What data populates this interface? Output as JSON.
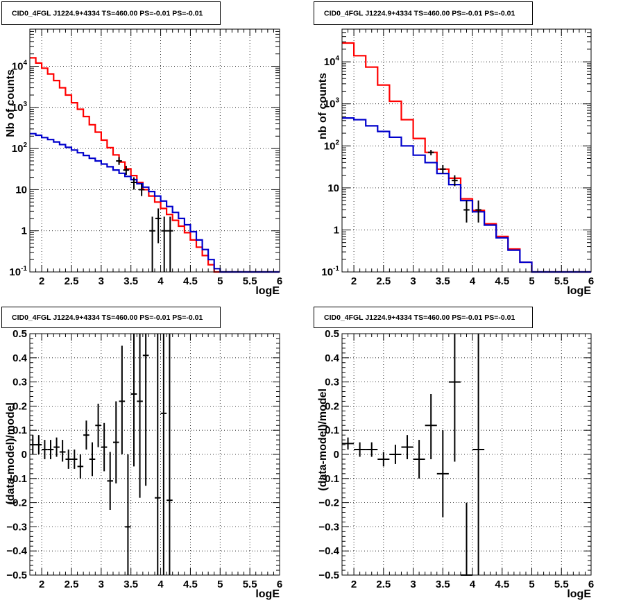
{
  "chart_data": [
    {
      "type": "step-histogram",
      "title": "CID0_4FGL J1224.9+4334 TS=460.00 PS=-0.01 PS=-0.01",
      "xlabel": "logE",
      "ylabel": "Nb of counts",
      "xlim": [
        1.8,
        6.0
      ],
      "ylim": [
        0.1,
        80000
      ],
      "yscale": "log",
      "grid": true,
      "x_ticks": [
        2,
        2.5,
        3,
        3.5,
        4,
        4.5,
        5,
        5.5,
        6
      ],
      "x_tick_labels": [
        "2",
        "2.5",
        "3",
        "3.5",
        "4",
        "4.5",
        "5",
        "5.5",
        "6"
      ],
      "y_ticks": [
        0.1,
        1,
        10,
        100,
        1000,
        10000
      ],
      "y_tick_labels": [
        "10^-1",
        "1",
        "10",
        "10^2",
        "10^3",
        "10^4"
      ],
      "bin_edges": [
        1.8,
        1.9,
        2.0,
        2.1,
        2.2,
        2.3,
        2.4,
        2.5,
        2.6,
        2.7,
        2.8,
        2.9,
        3.0,
        3.1,
        3.2,
        3.3,
        3.4,
        3.5,
        3.6,
        3.7,
        3.8,
        3.9,
        4.0,
        4.1,
        4.2,
        4.3,
        4.4,
        4.5,
        4.6,
        4.7,
        4.8,
        4.9,
        5.0,
        5.1,
        5.2,
        5.3,
        5.4,
        5.5,
        5.6,
        5.7,
        5.8,
        5.9,
        6.0
      ],
      "series": [
        {
          "values": [
            16000,
            12000,
            9000,
            6500,
            4500,
            3000,
            2000,
            1300,
            900,
            600,
            380,
            250,
            160,
            105,
            70,
            47,
            32,
            22,
            15,
            10,
            7,
            5,
            3.5,
            2.5,
            1.8,
            1.3,
            0.9,
            0.6,
            0.4,
            0.25,
            0.15,
            0.1,
            0.1,
            0.1,
            0.1,
            0.1,
            0.1,
            0.1,
            0.1,
            0.1,
            0.1,
            0.1
          ],
          "color": "#ff0000"
        },
        {
          "values": [
            230,
            210,
            185,
            165,
            145,
            125,
            107,
            92,
            79,
            68,
            58,
            50,
            42,
            36,
            30,
            25,
            21,
            17.5,
            14,
            11.5,
            9,
            7,
            5.3,
            3.9,
            2.8,
            2,
            1.4,
            0.95,
            0.6,
            0.35,
            0.2,
            0.12,
            0.1,
            0.1,
            0.1,
            0.1,
            0.1,
            0.1,
            0.1,
            0.1,
            0.1,
            0.1
          ],
          "color": "#0000cc"
        }
      ],
      "points": [
        {
          "x": 3.3,
          "y": 50,
          "lo": 40,
          "hi": 62
        },
        {
          "x": 3.42,
          "y": 30,
          "lo": 23,
          "hi": 38
        },
        {
          "x": 3.55,
          "y": 15,
          "lo": 10,
          "hi": 20
        },
        {
          "x": 3.68,
          "y": 10,
          "lo": 7,
          "hi": 14
        },
        {
          "x": 3.86,
          "y": 1,
          "lo": 0.1,
          "hi": 2.2
        },
        {
          "x": 3.96,
          "y": 2,
          "lo": 0.5,
          "hi": 3.5
        },
        {
          "x": 4.06,
          "y": 1,
          "lo": 0.1,
          "hi": 2.2
        },
        {
          "x": 4.16,
          "y": 1,
          "lo": 0.1,
          "hi": 2.2
        }
      ]
    },
    {
      "type": "step-histogram",
      "title": "CID0_4FGL J1224.9+4334 TS=460.00 PS=-0.01 PS=-0.01",
      "xlabel": "logE",
      "ylabel": "nb of counts",
      "xlim": [
        1.8,
        6.0
      ],
      "ylim": [
        0.1,
        60000
      ],
      "yscale": "log",
      "grid": true,
      "x_ticks": [
        2,
        2.5,
        3,
        3.5,
        4,
        4.5,
        5,
        5.5,
        6
      ],
      "x_tick_labels": [
        "2",
        "2.5",
        "3",
        "3.5",
        "4",
        "4.5",
        "5",
        "5.5",
        "6"
      ],
      "y_ticks": [
        0.1,
        1,
        10,
        100,
        1000,
        10000
      ],
      "y_tick_labels": [
        "10^-1",
        "1",
        "10",
        "10^2",
        "10^3",
        "10^4"
      ],
      "bin_edges": [
        1.8,
        2.0,
        2.2,
        2.4,
        2.6,
        2.8,
        3.0,
        3.2,
        3.4,
        3.6,
        3.8,
        4.0,
        4.2,
        4.4,
        4.6,
        4.8,
        5.0,
        5.2,
        5.4,
        5.6,
        5.8,
        6.0
      ],
      "series": [
        {
          "values": [
            28000,
            14000,
            7500,
            2800,
            1150,
            420,
            150,
            70,
            28,
            17,
            5.5,
            2.9,
            1.4,
            0.7,
            0.35,
            0.17,
            0.1,
            0.1,
            0.1,
            0.1,
            0.1
          ],
          "color": "#ff0000"
        },
        {
          "values": [
            460,
            420,
            300,
            220,
            160,
            100,
            60,
            40,
            22,
            12,
            5,
            2.7,
            1.3,
            0.65,
            0.33,
            0.17,
            0.1,
            0.1,
            0.1,
            0.1,
            0.1
          ],
          "color": "#0000cc"
        }
      ],
      "points": [
        {
          "x": 3.3,
          "y": 70,
          "lo": 60,
          "hi": 80
        },
        {
          "x": 3.5,
          "y": 28,
          "lo": 22,
          "hi": 35
        },
        {
          "x": 3.7,
          "y": 15,
          "lo": 11,
          "hi": 20
        },
        {
          "x": 3.9,
          "y": 3,
          "lo": 1.5,
          "hi": 5
        },
        {
          "x": 4.1,
          "y": 3,
          "lo": 1.5,
          "hi": 5
        }
      ]
    },
    {
      "type": "scatter-errorbars",
      "title": "CID0_4FGL J1224.9+4334 TS=460.00 PS=-0.01 PS=-0.01",
      "xlabel": "logE",
      "ylabel": "(data-model)/model",
      "xlim": [
        1.8,
        6.0
      ],
      "ylim": [
        -0.5,
        0.5
      ],
      "grid": true,
      "x_ticks": [
        2,
        2.5,
        3,
        3.5,
        4,
        4.5,
        5,
        5.5,
        6
      ],
      "x_tick_labels": [
        "2",
        "2.5",
        "3",
        "3.5",
        "4",
        "4.5",
        "5",
        "5.5",
        "6"
      ],
      "y_ticks": [
        -0.5,
        -0.4,
        -0.3,
        -0.2,
        -0.1,
        0,
        0.1,
        0.2,
        0.3,
        0.4,
        0.5
      ],
      "y_tick_labels": [
        "−0.5",
        "−0.4",
        "−0.3",
        "−0.2",
        "−0.1",
        "0",
        "0.1",
        "0.2",
        "0.3",
        "0.4",
        "0.5"
      ],
      "x_halfwidth": 0.05,
      "points": [
        {
          "x": 1.85,
          "y": 0.04,
          "lo": 0.0,
          "hi": 0.08
        },
        {
          "x": 1.95,
          "y": 0.04,
          "lo": 0.0,
          "hi": 0.08
        },
        {
          "x": 2.05,
          "y": 0.02,
          "lo": -0.02,
          "hi": 0.06
        },
        {
          "x": 2.15,
          "y": 0.02,
          "lo": -0.02,
          "hi": 0.06
        },
        {
          "x": 2.25,
          "y": 0.03,
          "lo": -0.01,
          "hi": 0.07
        },
        {
          "x": 2.35,
          "y": 0.01,
          "lo": -0.03,
          "hi": 0.06
        },
        {
          "x": 2.45,
          "y": -0.02,
          "lo": -0.06,
          "hi": 0.02
        },
        {
          "x": 2.55,
          "y": -0.02,
          "lo": -0.06,
          "hi": 0.02
        },
        {
          "x": 2.65,
          "y": -0.05,
          "lo": -0.1,
          "hi": 0.0
        },
        {
          "x": 2.75,
          "y": 0.08,
          "lo": 0.02,
          "hi": 0.14
        },
        {
          "x": 2.85,
          "y": -0.02,
          "lo": -0.09,
          "hi": 0.05
        },
        {
          "x": 2.95,
          "y": 0.12,
          "lo": 0.03,
          "hi": 0.21
        },
        {
          "x": 3.05,
          "y": 0.03,
          "lo": -0.07,
          "hi": 0.13
        },
        {
          "x": 3.15,
          "y": -0.11,
          "lo": -0.23,
          "hi": 0.01
        },
        {
          "x": 3.25,
          "y": 0.05,
          "lo": -0.12,
          "hi": 0.22
        },
        {
          "x": 3.35,
          "y": 0.22,
          "lo": -0.0,
          "hi": 0.45
        },
        {
          "x": 3.45,
          "y": -0.3,
          "lo": -0.5,
          "hi": 0.0
        },
        {
          "x": 3.55,
          "y": 0.25,
          "lo": -0.05,
          "hi": 0.5
        },
        {
          "x": 3.65,
          "y": 0.22,
          "lo": -0.18,
          "hi": 0.5
        },
        {
          "x": 3.75,
          "y": 0.41,
          "lo": -0.13,
          "hi": 0.5
        },
        {
          "x": 3.95,
          "y": -0.18,
          "lo": -0.5,
          "hi": 0.5
        },
        {
          "x": 4.05,
          "y": 0.17,
          "lo": -0.5,
          "hi": 0.5
        },
        {
          "x": 4.15,
          "y": -0.19,
          "lo": -0.5,
          "hi": 0.5
        }
      ]
    },
    {
      "type": "scatter-errorbars",
      "title": "CID0_4FGL J1224.9+4334 TS=460.00 PS=-0.01 PS=-0.01",
      "xlabel": "logE",
      "ylabel": "(data-model)/model",
      "xlim": [
        1.8,
        6.0
      ],
      "ylim": [
        -0.5,
        0.5
      ],
      "grid": true,
      "x_ticks": [
        2,
        2.5,
        3,
        3.5,
        4,
        4.5,
        5,
        5.5,
        6
      ],
      "x_tick_labels": [
        "2",
        "2.5",
        "3",
        "3.5",
        "4",
        "4.5",
        "5",
        "5.5",
        "6"
      ],
      "y_ticks": [
        -0.5,
        -0.4,
        -0.3,
        -0.2,
        -0.1,
        0,
        0.1,
        0.2,
        0.3,
        0.4,
        0.5
      ],
      "y_tick_labels": [
        "−0.5",
        "−0.4",
        "−0.3",
        "−0.2",
        "−0.1",
        "0",
        "0.1",
        "0.2",
        "0.3",
        "0.4",
        "0.5"
      ],
      "x_halfwidth": 0.1,
      "points": [
        {
          "x": 1.9,
          "y": 0.045,
          "lo": 0.02,
          "hi": 0.07
        },
        {
          "x": 2.1,
          "y": 0.02,
          "lo": -0.01,
          "hi": 0.05
        },
        {
          "x": 2.3,
          "y": 0.02,
          "lo": -0.01,
          "hi": 0.05
        },
        {
          "x": 2.5,
          "y": -0.02,
          "lo": -0.05,
          "hi": 0.01
        },
        {
          "x": 2.7,
          "y": 0.0,
          "lo": -0.04,
          "hi": 0.04
        },
        {
          "x": 2.9,
          "y": 0.03,
          "lo": -0.02,
          "hi": 0.08
        },
        {
          "x": 3.1,
          "y": -0.02,
          "lo": -0.1,
          "hi": 0.06
        },
        {
          "x": 3.3,
          "y": 0.12,
          "lo": -0.02,
          "hi": 0.25
        },
        {
          "x": 3.5,
          "y": -0.08,
          "lo": -0.26,
          "hi": 0.1
        },
        {
          "x": 3.7,
          "y": 0.3,
          "lo": -0.03,
          "hi": 0.5
        },
        {
          "x": 3.9,
          "y": -0.5,
          "lo": -0.5,
          "hi": -0.2
        },
        {
          "x": 4.1,
          "y": 0.02,
          "lo": -0.5,
          "hi": 0.5
        }
      ]
    }
  ]
}
